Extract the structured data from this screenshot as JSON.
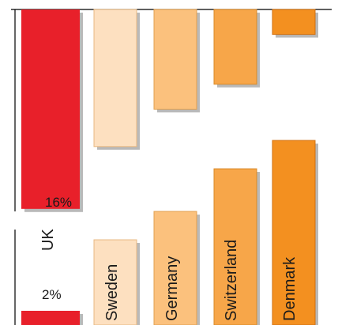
{
  "chart_data": [
    {
      "type": "bar",
      "panel": "top",
      "categories": [
        "UK",
        "Sweden",
        "Germany",
        "Switzerland",
        "Denmark"
      ],
      "values": [
        16,
        11,
        8,
        6,
        2
      ],
      "value_labels": [
        "16%",
        "",
        "",
        "",
        ""
      ],
      "title": "",
      "xlabel": "",
      "ylabel": "",
      "grid": false,
      "legend": "none"
    },
    {
      "type": "bar",
      "panel": "bottom",
      "categories": [
        "UK",
        "Sweden",
        "Germany",
        "Switzerland",
        "Denmark"
      ],
      "values": [
        2,
        12,
        16,
        22,
        26
      ],
      "value_labels": [
        "2%",
        "",
        "",
        "",
        ""
      ],
      "title": "",
      "xlabel": "",
      "ylabel": "",
      "grid": false,
      "legend": "none"
    }
  ],
  "colors": {
    "axis": "#000000",
    "bars": [
      "#e8202a",
      "#fde0c0",
      "#fbc17d",
      "#f7a649",
      "#f39020"
    ],
    "bar_edges": [
      "#c4161e",
      "#e8b882",
      "#e0a050",
      "#d98a28",
      "#d07010"
    ],
    "shadow": "#b9b9b9"
  }
}
